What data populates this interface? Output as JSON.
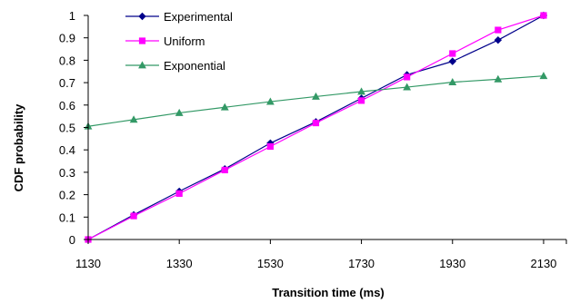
{
  "chart_data": {
    "type": "line",
    "title": "",
    "xlabel": "Transition time (ms)",
    "ylabel": "CDF probability",
    "xlim": [
      1130,
      2180
    ],
    "ylim": [
      0,
      1
    ],
    "xticks": [
      1130,
      1330,
      1530,
      1730,
      1930,
      2130
    ],
    "yticks": [
      0,
      0.1,
      0.2,
      0.3,
      0.4,
      0.5,
      0.6,
      0.7,
      0.8,
      0.9,
      1
    ],
    "grid": false,
    "legend": "top-left",
    "series": [
      {
        "name": "Experimental",
        "color": "#00008B",
        "marker": "diamond",
        "x": [
          1130,
          1230,
          1330,
          1430,
          1530,
          1630,
          1730,
          1830,
          1930,
          2030,
          2130
        ],
        "y": [
          0,
          0.11,
          0.215,
          0.315,
          0.43,
          0.525,
          0.63,
          0.735,
          0.795,
          0.89,
          1.0
        ]
      },
      {
        "name": "Uniform",
        "color": "#FF00FF",
        "marker": "square",
        "x": [
          1130,
          1230,
          1330,
          1430,
          1530,
          1630,
          1730,
          1830,
          1930,
          2030,
          2130
        ],
        "y": [
          0,
          0.105,
          0.205,
          0.31,
          0.415,
          0.52,
          0.62,
          0.725,
          0.83,
          0.935,
          1.0
        ]
      },
      {
        "name": "Exponential",
        "color": "#339966",
        "marker": "triangle",
        "x": [
          1130,
          1230,
          1330,
          1430,
          1530,
          1630,
          1730,
          1830,
          1930,
          2030,
          2130
        ],
        "y": [
          0.505,
          0.535,
          0.565,
          0.59,
          0.615,
          0.638,
          0.66,
          0.68,
          0.702,
          0.715,
          0.73
        ]
      }
    ]
  }
}
